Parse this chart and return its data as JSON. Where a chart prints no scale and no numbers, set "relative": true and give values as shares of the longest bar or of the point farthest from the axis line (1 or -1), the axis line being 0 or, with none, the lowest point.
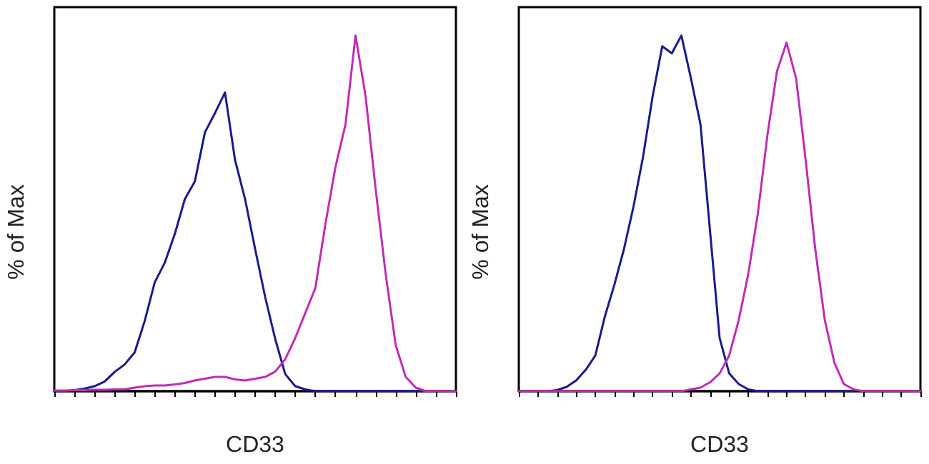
{
  "chart_data": [
    {
      "type": "line",
      "relative": true,
      "xlabel": "CD33",
      "ylabel": "% of Max",
      "grid": false,
      "categories": [
        null,
        null,
        null,
        null,
        null,
        null,
        null,
        null,
        null,
        null,
        null,
        null,
        null,
        null,
        null,
        null,
        null,
        null,
        null,
        null,
        null,
        null,
        null,
        null,
        null,
        null,
        null,
        null,
        null,
        null,
        null,
        null,
        null,
        null,
        null,
        null,
        null,
        null,
        null,
        null,
        null
      ],
      "series": [
        {
          "color": "#1a1a8c",
          "values": [
            0,
            0,
            0.003,
            0.007,
            0.014,
            0.027,
            0.054,
            0.075,
            0.109,
            0.197,
            0.306,
            0.361,
            0.442,
            0.54,
            0.59,
            0.728,
            0.782,
            0.84,
            0.65,
            0.54,
            0.4,
            0.265,
            0.147,
            0.048,
            0.014,
            0.005,
            0,
            0,
            0,
            0,
            0,
            0,
            0,
            0,
            0,
            0,
            0,
            0,
            null,
            null,
            null
          ]
        },
        {
          "color": "#c02cb4",
          "values": [
            0.002,
            0.002,
            0.003,
            0.003,
            0.004,
            0.004,
            0.005,
            0.005,
            0.01,
            0.014,
            0.016,
            0.016,
            0.019,
            0.023,
            0.03,
            0.035,
            0.04,
            0.04,
            0.033,
            0.03,
            0.035,
            0.04,
            0.055,
            0.09,
            0.15,
            0.22,
            0.29,
            0.47,
            0.63,
            0.75,
            1,
            0.83,
            0.57,
            0.33,
            0.13,
            0.04,
            0.01,
            0,
            0,
            0,
            0
          ]
        }
      ]
    },
    {
      "type": "line",
      "relative": true,
      "xlabel": "CD33",
      "ylabel": "% of Max",
      "grid": false,
      "categories": [
        null,
        null,
        null,
        null,
        null,
        null,
        null,
        null,
        null,
        null,
        null,
        null,
        null,
        null,
        null,
        null,
        null,
        null,
        null,
        null,
        null,
        null,
        null,
        null,
        null,
        null,
        null,
        null,
        null,
        null,
        null,
        null,
        null,
        null,
        null,
        null,
        null,
        null,
        null,
        null,
        null,
        null,
        null
      ],
      "series": [
        {
          "color": "#1a1a8c",
          "values": [
            null,
            null,
            null,
            0,
            0.003,
            0.012,
            0.03,
            0.06,
            0.1,
            0.21,
            0.3,
            0.4,
            0.52,
            0.66,
            0.83,
            0.97,
            0.95,
            1,
            0.88,
            0.75,
            0.45,
            0.15,
            0.05,
            0.02,
            0.005,
            0,
            0,
            0,
            0,
            0,
            0,
            0,
            0,
            0,
            0,
            0,
            null,
            null,
            null,
            null,
            null,
            null,
            null
          ]
        },
        {
          "color": "#c02cb4",
          "values": [
            0,
            0,
            0,
            0,
            0,
            0,
            0,
            0,
            0,
            0,
            0,
            0,
            0,
            0,
            0,
            0,
            0,
            0,
            0.005,
            0.01,
            0.025,
            0.05,
            0.1,
            0.2,
            0.33,
            0.5,
            0.72,
            0.9,
            0.98,
            0.88,
            0.65,
            0.4,
            0.2,
            0.08,
            0.02,
            0.005,
            0,
            0,
            0,
            0,
            0,
            0,
            0
          ]
        }
      ]
    }
  ]
}
